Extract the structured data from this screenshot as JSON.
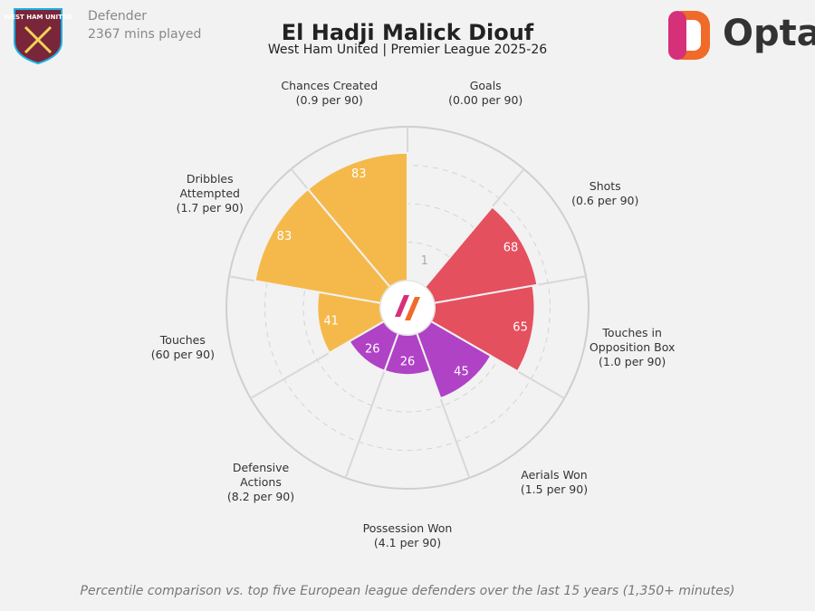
{
  "chart_data": {
    "type": "pizza",
    "title": "El Hadji Malick Diouf",
    "subtitle": "West Ham United | Premier League 2025-26",
    "player_info": [
      "Defender",
      "2367 mins played"
    ],
    "club": "WEST HAM UNITED",
    "brand": "Opta",
    "footnote": "Percentile comparison vs. top five European league defenders over the last 15 years (1,350+ minutes)",
    "categories": [
      "Goals",
      "Shots",
      "Touches in\nOpposition Box",
      "Aerials Won",
      "Possession Won",
      "Defensive\nActions",
      "Touches",
      "Dribbles\nAttempted",
      "Chances Created"
    ],
    "stat_labels": [
      "(0.00 per 90)",
      "(0.6 per 90)",
      "(1.0 per 90)",
      "(1.5 per 90)",
      "(4.1 per 90)",
      "(8.2 per 90)",
      "(60 per 90)",
      "(1.7 per 90)",
      "(0.9 per 90)"
    ],
    "values": [
      1,
      68,
      65,
      45,
      26,
      26,
      41,
      83,
      83
    ],
    "colors": [
      "#e5505f",
      "#e5505f",
      "#e5505f",
      "#b042c6",
      "#b042c6",
      "#b042c6",
      "#f5b94b",
      "#f5b94b",
      "#f5b94b"
    ],
    "rlim": [
      0,
      100
    ]
  }
}
